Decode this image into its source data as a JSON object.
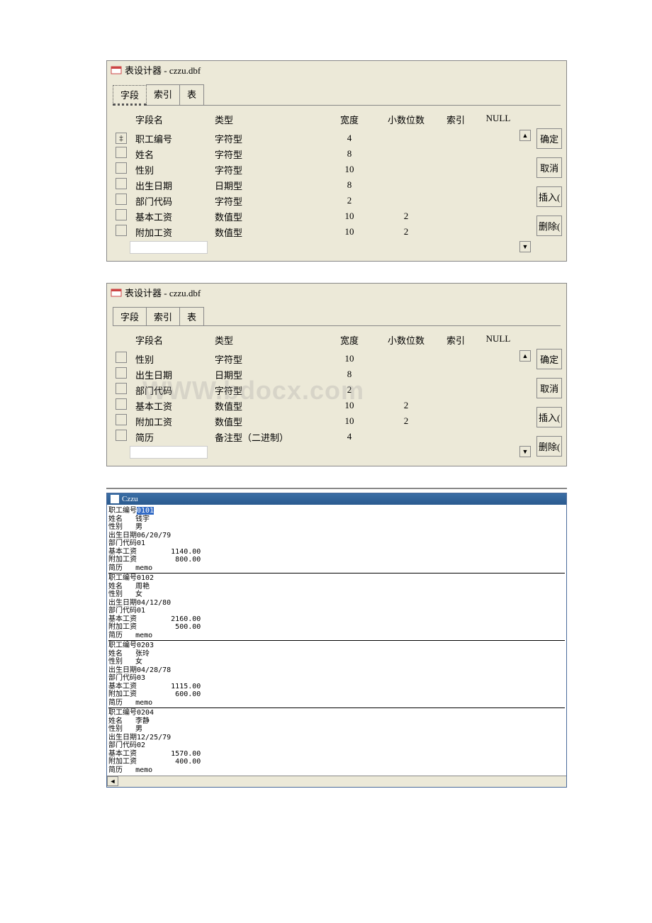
{
  "designer1": {
    "title": "表设计器 - czzu.dbf",
    "tabs": [
      "字段",
      "索引",
      "表"
    ],
    "activeTab": 0,
    "headers": {
      "name": "字段名",
      "type": "类型",
      "width": "宽度",
      "dec": "小数位数",
      "idx": "索引",
      "null": "NULL"
    },
    "fields": [
      {
        "selected": true,
        "name": "职工编号",
        "type": "字符型",
        "width": "4",
        "dec": ""
      },
      {
        "selected": false,
        "name": "姓名",
        "type": "字符型",
        "width": "8",
        "dec": ""
      },
      {
        "selected": false,
        "name": "性别",
        "type": "字符型",
        "width": "10",
        "dec": ""
      },
      {
        "selected": false,
        "name": "出生日期",
        "type": "日期型",
        "width": "8",
        "dec": ""
      },
      {
        "selected": false,
        "name": "部门代码",
        "type": "字符型",
        "width": "2",
        "dec": ""
      },
      {
        "selected": false,
        "name": "基本工资",
        "type": "数值型",
        "width": "10",
        "dec": "2"
      },
      {
        "selected": false,
        "name": "附加工资",
        "type": "数值型",
        "width": "10",
        "dec": "2"
      }
    ],
    "buttons": {
      "ok": "确定",
      "cancel": "取消",
      "insert": "插入(",
      "delete": "删除("
    }
  },
  "designer2": {
    "title": "表设计器 - czzu.dbf",
    "tabs": [
      "字段",
      "索引",
      "表"
    ],
    "activeTab": 0,
    "headers": {
      "name": "字段名",
      "type": "类型",
      "width": "宽度",
      "dec": "小数位数",
      "idx": "索引",
      "null": "NULL"
    },
    "fields": [
      {
        "selected": false,
        "name": "性别",
        "type": "字符型",
        "width": "10",
        "dec": ""
      },
      {
        "selected": false,
        "name": "出生日期",
        "type": "日期型",
        "width": "8",
        "dec": ""
      },
      {
        "selected": false,
        "name": "部门代码",
        "type": "字符型",
        "width": "2",
        "dec": ""
      },
      {
        "selected": false,
        "name": "基本工资",
        "type": "数值型",
        "width": "10",
        "dec": "2"
      },
      {
        "selected": false,
        "name": "附加工资",
        "type": "数值型",
        "width": "10",
        "dec": "2"
      },
      {
        "selected": false,
        "name": "简历",
        "type": "备注型（二进制）",
        "width": "4",
        "dec": ""
      }
    ],
    "buttons": {
      "ok": "确定",
      "cancel": "取消",
      "insert": "插入(",
      "delete": "删除("
    }
  },
  "browse": {
    "title": "Czzu",
    "records": [
      {
        "id": "0101",
        "hl": true,
        "name": "钱宇",
        "sex": "男",
        "birth": "06/20/79",
        "dept": "01",
        "base": "1140.00",
        "add": "800.00"
      },
      {
        "id": "0102",
        "hl": false,
        "name": "周艳",
        "sex": "女",
        "birth": "04/12/80",
        "dept": "01",
        "base": "2160.00",
        "add": "500.00"
      },
      {
        "id": "0203",
        "hl": false,
        "name": "张玲",
        "sex": "女",
        "birth": "04/28/78",
        "dept": "03",
        "base": "1115.00",
        "add": "600.00"
      },
      {
        "id": "0204",
        "hl": false,
        "name": "李静",
        "sex": "男",
        "birth": "12/25/79",
        "dept": "02",
        "base": "1570.00",
        "add": "400.00"
      }
    ],
    "labels": {
      "id": "职工编号",
      "name": "姓名",
      "sex": "性别",
      "birth": "出生日期",
      "dept": "部门代码",
      "base": "基本工资",
      "add": "附加工资",
      "memo": "简历",
      "memoVal": "memo"
    }
  }
}
